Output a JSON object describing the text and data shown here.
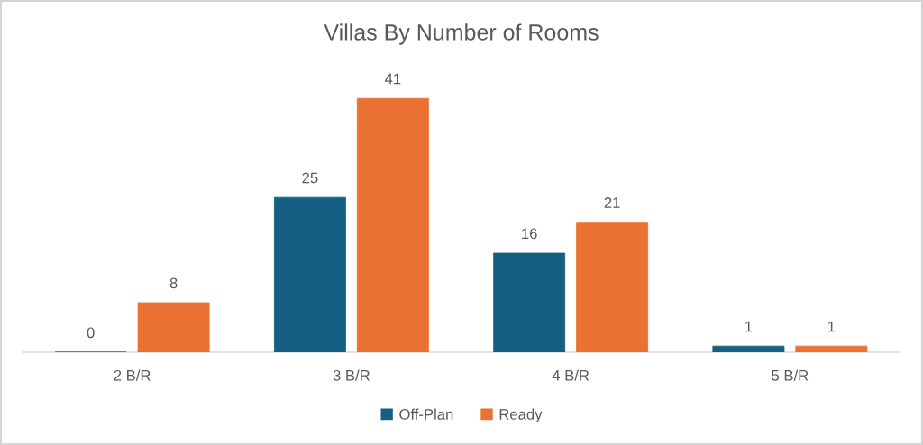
{
  "chart_data": {
    "type": "bar",
    "title": "Villas By Number of Rooms",
    "categories": [
      "2 B/R",
      "3 B/R",
      "4 B/R",
      "5 B/R"
    ],
    "series": [
      {
        "name": "Off-Plan",
        "color": "#156082",
        "values": [
          0,
          25,
          16,
          1
        ]
      },
      {
        "name": "Ready",
        "color": "#e97132",
        "values": [
          8,
          41,
          21,
          1
        ]
      }
    ],
    "data_labels": true,
    "legend": "bottom",
    "tick_labels": "x"
  }
}
